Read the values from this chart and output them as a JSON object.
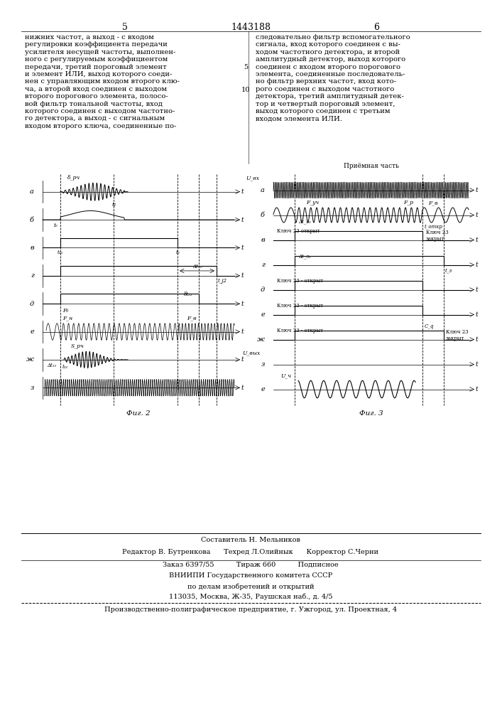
{
  "page_number_left": "5",
  "patent_number": "1443188",
  "page_number_right": "6",
  "text_left": "нижних частот, а выход - с входом\nрегулировки коэффициента передачи\nусилителя несущей частоты, выполнен-\nного с регулируемым коэффициентом\nпередачи, третий пороговый элемент\nи элемент ИЛИ, выход которого соеди-\nнен с управляющим входом второго клю-\nча, а второй вход соединен с выходом\nвторого порогового элемента, полосо-\nвой фильтр тональной частоты, вход\nкоторого соединен с выходом частотно-\nго детектора, а выход - с сигнальным\nвходом второго ключа, соединенные по-",
  "text_right": "следовательно фильтр вспомогательного\nсигнала, вход которого соединен с вы-\nходом частотного детектора, и второй\nамплитудный детектор, выход которого\nсоединен с входом второго порогового\nэлемента, соединенные последователь-\nно фильтр верхних частот, вход кото-\nрого соединен с выходом частотного\nдетектора, третий амплитудный детек-\nтор и четвертый пороговый элемент,\nвыход которого соединен с третьим\nвходом элемента ИЛИ.",
  "line_numbers_left": [
    "5",
    "10"
  ],
  "fig2_label": "Фиг. 2",
  "fig3_label": "Фиг. 3",
  "fig2_row_labels": [
    "а",
    "б",
    "в",
    "г",
    "д",
    "е",
    "ж",
    "з"
  ],
  "fig3_row_labels": [
    "а",
    "б",
    "в",
    "г",
    "д",
    "е",
    "ж",
    "з",
    "е"
  ],
  "editor_line": "Редактор В. Бутренкова      Техред Л.Олийнык      Корректор С.Черни",
  "order_line": "Заказ 6397/55          Тираж 660          Подписное",
  "vniiipi_line1": "ВНИИПИ Государственного комитета СССР",
  "vniiipi_line2": "по делам изобретений и открытий",
  "vniiipi_line3": "113035, Москва, Ж-35, Раушская наб., д. 4/5",
  "factory_line": "Производственно-полиграфическое предприятие, г. Ужгород, ул. Проектная, 4",
  "composer_line": "Составитель Н. Мельников"
}
